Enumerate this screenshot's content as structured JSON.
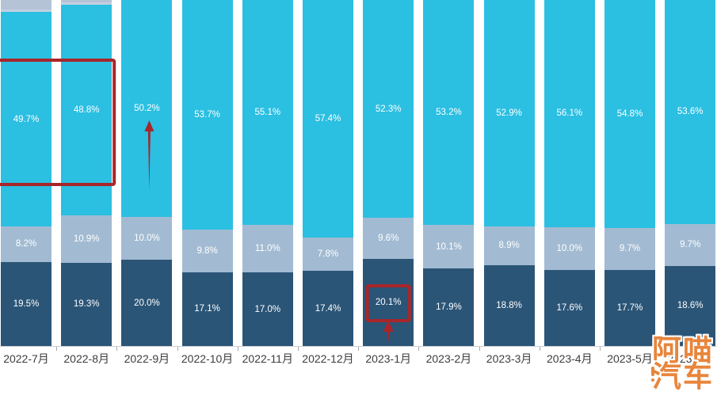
{
  "chart_data": {
    "type": "bar",
    "stacked": true,
    "title": "",
    "xlabel": "",
    "ylabel": "",
    "value_suffix": "%",
    "legend": "none (no legend visible; top of chart cropped)",
    "categories": [
      "2022-7月",
      "2022-8月",
      "2022-9月",
      "2022-10月",
      "2022-11月",
      "2022-12月",
      "2023-1月",
      "2023-2月",
      "2023-3月",
      "2023-4月",
      "2023-5月",
      "2023-6月"
    ],
    "series": [
      {
        "name": "dark-navy-bottom-segment",
        "values": [
          19.5,
          19.3,
          20.0,
          17.1,
          17.0,
          17.4,
          20.1,
          17.9,
          18.8,
          17.6,
          17.7,
          18.6
        ]
      },
      {
        "name": "gray-blue-middle-segment",
        "values": [
          8.2,
          10.9,
          10.0,
          9.8,
          11.0,
          7.8,
          9.6,
          10.1,
          8.9,
          10.0,
          9.7,
          9.7
        ]
      },
      {
        "name": "cyan-large-segment",
        "values": [
          49.7,
          48.8,
          50.2,
          53.7,
          55.1,
          57.4,
          52.3,
          53.2,
          52.9,
          56.1,
          54.8,
          53.6
        ]
      }
    ],
    "note_top_segment": "a fourth light gray-blue segment is cropped at the top edge; only slivers visible on 2022-7月 and 2022-8月"
  },
  "colors": {
    "cyan": "#2BBFE2",
    "gray_mid": "#A2BBD2",
    "navy": "#2B5577",
    "top_gray": "#B4C3D6",
    "top_gray_edge": "#C3CFDE",
    "annotation_red": "#A8262A",
    "axis_line": "#CDD0D4",
    "tick": "#A6A9AD",
    "x_label": "#3D3D3D",
    "value_label": "#FFFFFF",
    "watermark_orange": "#E8853C",
    "background": "#FFFFFF"
  },
  "annotations": [
    {
      "id": "highlight-box-top",
      "type": "rect",
      "target": "cyan segments of 2022-7月 and 2022-8月 (49.7% / 48.8%)",
      "from_bar": 0,
      "to_bar": 1
    },
    {
      "id": "rise-arrow",
      "type": "arrow-up",
      "target": "cyan segment of 2022-9月 under 50.2%",
      "bar": 2
    },
    {
      "id": "value-box",
      "type": "rect",
      "target": "20.1% navy label of 2023-1月",
      "bar": 6,
      "value": "20.1%"
    },
    {
      "id": "value-arrow",
      "type": "arrow-up",
      "target": "below 20.1% box of 2023-1月",
      "bar": 6
    }
  ],
  "watermark": {
    "line1": "阿喵",
    "line2": "汽车"
  }
}
